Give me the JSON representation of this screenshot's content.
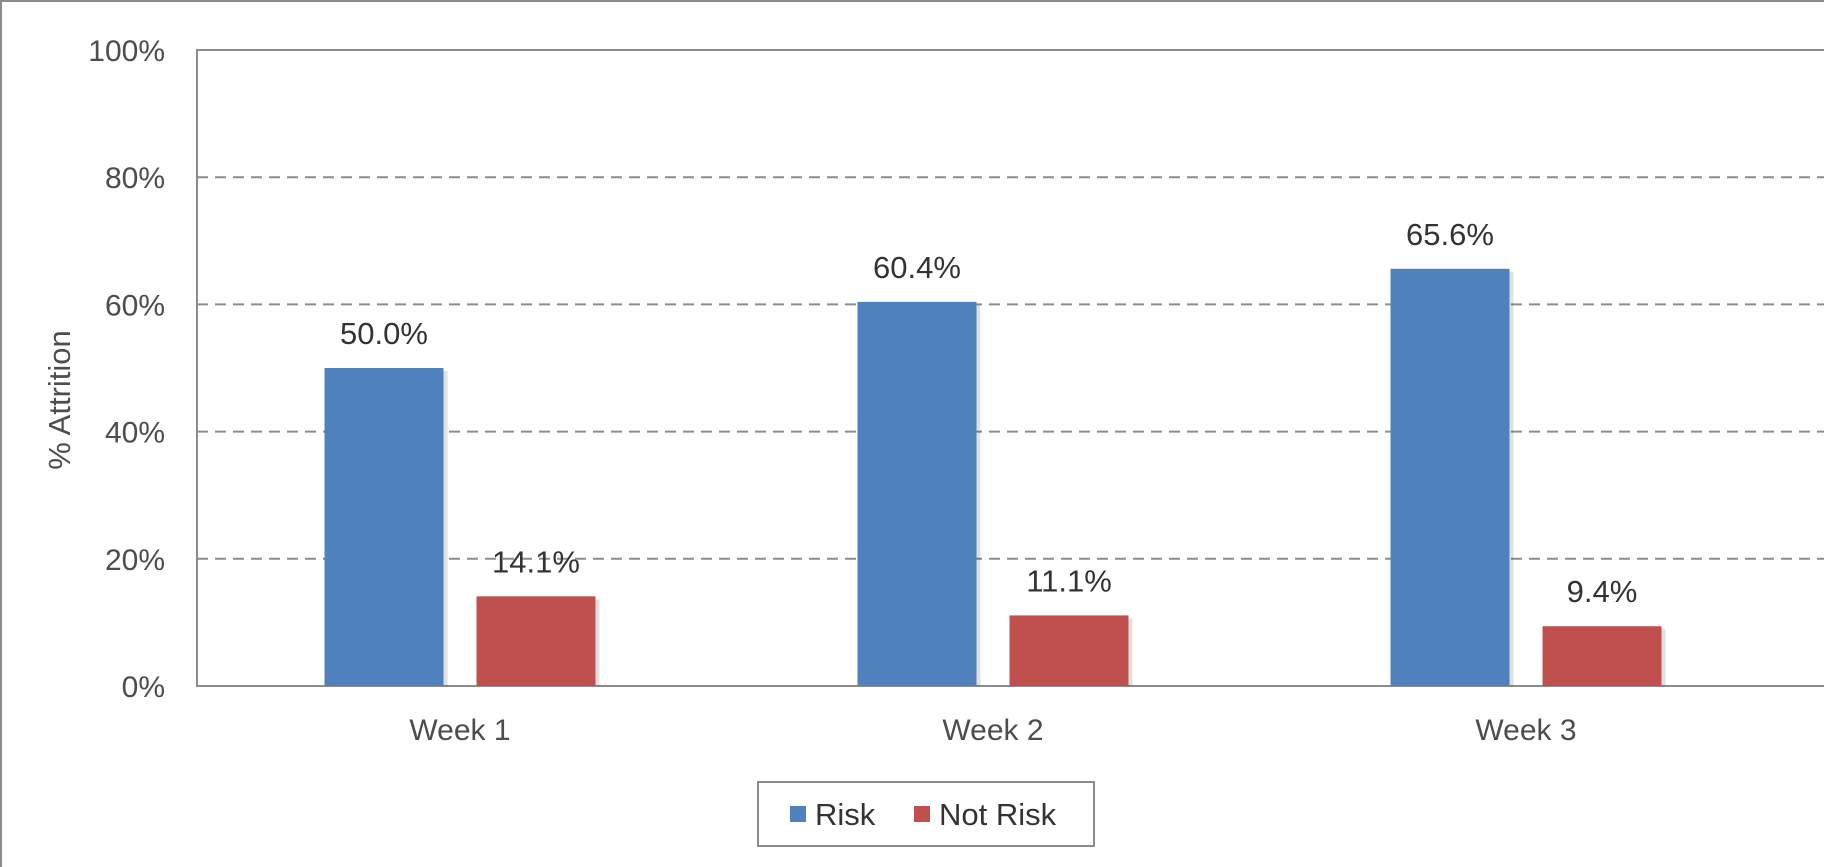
{
  "chart_data": {
    "type": "bar",
    "categories": [
      "Week 1",
      "Week 2",
      "Week 3"
    ],
    "series": [
      {
        "name": "Risk",
        "values": [
          50.0,
          60.4,
          65.6
        ],
        "labels": [
          "50.0%",
          "60.4%",
          "65.6%"
        ],
        "color": "#4f81bd"
      },
      {
        "name": "Not Risk",
        "values": [
          14.1,
          11.1,
          9.4
        ],
        "labels": [
          "14.1%",
          "11.1%",
          "9.4%"
        ],
        "color": "#c0504d"
      }
    ],
    "title": "",
    "xlabel": "",
    "ylabel": "% Attrition",
    "ylim": [
      0,
      100
    ],
    "yticks": [
      0,
      20,
      40,
      60,
      80,
      100
    ],
    "ytick_labels": [
      "0%",
      "20%",
      "40%",
      "60%",
      "80%",
      "100%"
    ],
    "grid": true,
    "legend_position": "bottom"
  }
}
